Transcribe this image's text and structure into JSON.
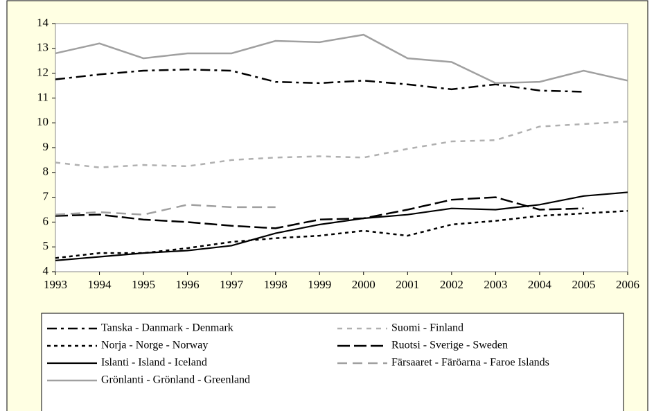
{
  "chart_data": {
    "type": "line",
    "x": [
      1993,
      1994,
      1995,
      1996,
      1997,
      1998,
      1999,
      2000,
      2001,
      2002,
      2003,
      2004,
      2005,
      2006
    ],
    "xlim": [
      1993,
      2006
    ],
    "xticks": [
      1993,
      1994,
      1995,
      1996,
      1997,
      1998,
      1999,
      2000,
      2001,
      2002,
      2003,
      2004,
      2005,
      2006
    ],
    "ylim": [
      4,
      14
    ],
    "yticks": [
      4,
      5,
      6,
      7,
      8,
      9,
      10,
      11,
      12,
      13,
      14
    ],
    "grid": false,
    "series": [
      {
        "name": "Tanska - Danmark - Denmark",
        "color": "#000000",
        "values": [
          11.75,
          11.95,
          12.1,
          12.15,
          12.1,
          11.65,
          11.6,
          11.7,
          11.55,
          11.35,
          11.55,
          11.3,
          11.25,
          null
        ]
      },
      {
        "name": "Suomi - Finland",
        "color": "#b0b0b0",
        "values": [
          8.4,
          8.2,
          8.3,
          8.25,
          8.5,
          8.6,
          8.65,
          8.6,
          8.95,
          9.25,
          9.3,
          9.85,
          9.95,
          10.05
        ]
      },
      {
        "name": "Norja - Norge - Norway",
        "color": "#000000",
        "values": [
          4.55,
          4.75,
          4.75,
          4.95,
          5.2,
          5.35,
          5.45,
          5.65,
          5.45,
          5.9,
          6.05,
          6.25,
          6.35,
          6.45
        ]
      },
      {
        "name": "Ruotsi - Sverige - Sweden",
        "color": "#000000",
        "values": [
          6.25,
          6.3,
          6.1,
          6.0,
          5.85,
          5.75,
          6.1,
          6.15,
          6.5,
          6.9,
          7.0,
          6.5,
          6.55,
          null
        ]
      },
      {
        "name": "Islanti - Island - Iceland",
        "color": "#000000",
        "values": [
          4.45,
          4.6,
          4.75,
          4.85,
          5.05,
          5.55,
          5.9,
          6.15,
          6.3,
          6.55,
          6.5,
          6.7,
          7.05,
          7.2
        ]
      },
      {
        "name": "Färsaaret - Färöarna - Faroe Islands",
        "color": "#a0a0a0",
        "values": [
          6.3,
          6.4,
          6.3,
          6.7,
          6.6,
          6.6,
          null,
          null,
          null,
          null,
          null,
          null,
          null,
          null
        ]
      },
      {
        "name": "Grönlanti - Grönland - Greenland",
        "color": "#a0a0a0",
        "values": [
          12.8,
          13.2,
          12.6,
          12.8,
          12.8,
          13.3,
          13.25,
          13.55,
          12.6,
          12.45,
          11.6,
          11.65,
          12.1,
          11.7
        ]
      }
    ]
  }
}
